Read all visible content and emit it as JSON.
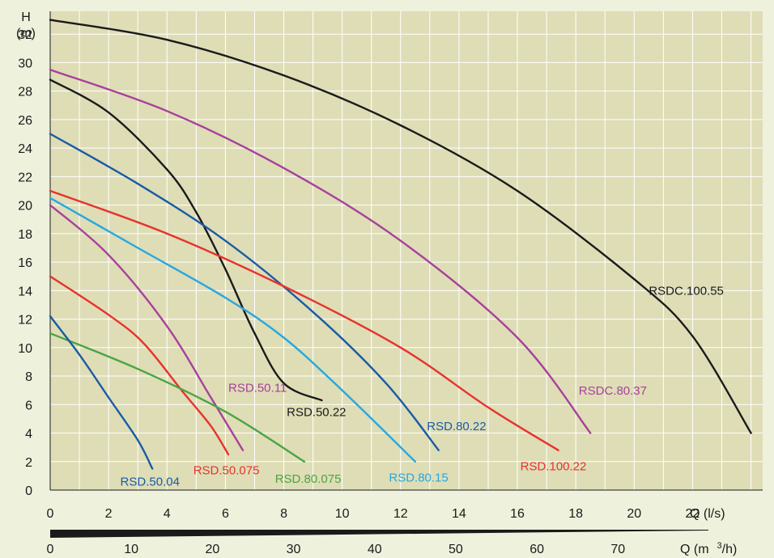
{
  "chart_data": {
    "type": "line",
    "title": "",
    "ylabel_line1": "H",
    "ylabel_line2": "(m)",
    "xlabel": "Q (l/s)",
    "x2label_prefix": "Q (m",
    "x2label_sup": "3",
    "x2label_suffix": "/h)",
    "xlim": [
      0,
      24.4
    ],
    "ylim": [
      0,
      33.6
    ],
    "x_ticks": [
      "0",
      "2",
      "4",
      "6",
      "8",
      "10",
      "12",
      "14",
      "16",
      "18",
      "20",
      "22"
    ],
    "y_ticks": [
      "0",
      "2",
      "4",
      "6",
      "8",
      "10",
      "12",
      "14",
      "16",
      "18",
      "20",
      "22",
      "24",
      "26",
      "28",
      "30",
      "32"
    ],
    "x2_ticks": [
      "0",
      "10",
      "20",
      "30",
      "40",
      "50",
      "60",
      "70"
    ],
    "grid": true,
    "colors": {
      "background": "#eef2dc",
      "plot_area": "#deddb6",
      "grid": "#ffffff",
      "black": "#1a1a1a",
      "purple": "#a8409c",
      "red": "#e8322d",
      "blue": "#1a5ba6",
      "lightblue": "#27a8e0",
      "green": "#4aa544"
    },
    "series": [
      {
        "name": "RSDC.100.55",
        "color": "black",
        "points": [
          [
            0,
            33
          ],
          [
            4,
            31.6
          ],
          [
            8,
            29.1
          ],
          [
            12,
            25.6
          ],
          [
            16,
            21
          ],
          [
            20,
            14.8
          ],
          [
            22,
            10.8
          ],
          [
            24,
            4
          ]
        ]
      },
      {
        "name": "RSDC.80.37",
        "color": "purple",
        "points": [
          [
            0,
            29.5
          ],
          [
            4,
            26.6
          ],
          [
            8,
            22.6
          ],
          [
            12,
            17.5
          ],
          [
            16,
            10.7
          ],
          [
            18.5,
            4
          ]
        ]
      },
      {
        "name": "RSD.50.22",
        "color": "black",
        "points": [
          [
            0,
            28.8
          ],
          [
            2,
            26.5
          ],
          [
            4,
            22.5
          ],
          [
            5,
            19.5
          ],
          [
            6,
            15.5
          ],
          [
            7,
            11
          ],
          [
            8,
            7.5
          ],
          [
            9.3,
            6.3
          ]
        ]
      },
      {
        "name": "RSD.80.22",
        "color": "blue",
        "points": [
          [
            0,
            25
          ],
          [
            3,
            21.5
          ],
          [
            6,
            17.5
          ],
          [
            9,
            12.5
          ],
          [
            11.5,
            7.5
          ],
          [
            13.3,
            2.8
          ]
        ]
      },
      {
        "name": "RSD.100.22",
        "color": "red",
        "points": [
          [
            0,
            21
          ],
          [
            4,
            18
          ],
          [
            8,
            14.3
          ],
          [
            12,
            10
          ],
          [
            15,
            5.8
          ],
          [
            17.4,
            2.8
          ]
        ]
      },
      {
        "name": "RSD.80.15",
        "color": "lightblue",
        "points": [
          [
            0,
            20.5
          ],
          [
            3,
            17
          ],
          [
            6,
            13.5
          ],
          [
            8,
            10.7
          ],
          [
            10,
            7
          ],
          [
            12.5,
            2
          ]
        ]
      },
      {
        "name": "RSD.50.11",
        "color": "purple",
        "points": [
          [
            0,
            20
          ],
          [
            2,
            16.5
          ],
          [
            4,
            11.5
          ],
          [
            5.5,
            6.5
          ],
          [
            6.6,
            2.8
          ]
        ]
      },
      {
        "name": "RSD.50.075",
        "color": "red",
        "points": [
          [
            0,
            15
          ],
          [
            2,
            12.3
          ],
          [
            3.2,
            10.3
          ],
          [
            4.5,
            7
          ],
          [
            5.5,
            4.5
          ],
          [
            6.1,
            2.5
          ]
        ]
      },
      {
        "name": "RSD.80.075",
        "color": "green",
        "points": [
          [
            0,
            11
          ],
          [
            3,
            8.5
          ],
          [
            6,
            5.5
          ],
          [
            8.7,
            2
          ]
        ]
      },
      {
        "name": "RSD.50.04",
        "color": "blue",
        "points": [
          [
            0,
            12.2
          ],
          [
            1,
            9.5
          ],
          [
            2,
            6.5
          ],
          [
            3,
            3.5
          ],
          [
            3.5,
            1.5
          ]
        ]
      }
    ],
    "annotations": [
      {
        "text": "RSDC.100.55",
        "color": "black",
        "x": 20.5,
        "y": 13.7
      },
      {
        "text": "RSDC.80.37",
        "color": "purple",
        "x": 18.1,
        "y": 6.7
      },
      {
        "text": "RSD.50.22",
        "color": "black",
        "x": 8.1,
        "y": 5.2
      },
      {
        "text": "RSD.80.22",
        "color": "blue",
        "x": 12.9,
        "y": 4.2
      },
      {
        "text": "RSD.100.22",
        "color": "red",
        "x": 16.1,
        "y": 1.4
      },
      {
        "text": "RSD.80.15",
        "color": "lightblue",
        "x": 11.6,
        "y": 0.6
      },
      {
        "text": "RSD.50.11",
        "color": "purple",
        "x": 6.1,
        "y": 6.9
      },
      {
        "text": "RSD.50.075",
        "color": "red",
        "x": 4.9,
        "y": 1.1
      },
      {
        "text": "RSD.80.075",
        "color": "green",
        "x": 7.7,
        "y": 0.5
      },
      {
        "text": "RSD.50.04",
        "color": "blue",
        "x": 2.4,
        "y": 0.3
      }
    ]
  }
}
